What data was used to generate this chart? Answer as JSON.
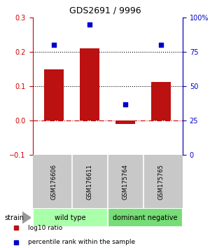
{
  "title": "GDS2691 / 9996",
  "samples": [
    "GSM176606",
    "GSM176611",
    "GSM175764",
    "GSM175765"
  ],
  "log10_ratio": [
    0.148,
    0.21,
    -0.01,
    0.112
  ],
  "percentile_rank": [
    80.0,
    95.0,
    37.0,
    80.0
  ],
  "bar_color": "#bb1111",
  "dot_color": "#0000cc",
  "left_ylim": [
    -0.1,
    0.3
  ],
  "right_ylim": [
    0,
    100
  ],
  "left_yticks": [
    -0.1,
    0.0,
    0.1,
    0.2,
    0.3
  ],
  "right_yticks": [
    0,
    25,
    50,
    75,
    100
  ],
  "right_yticklabels": [
    "0",
    "25",
    "50",
    "75",
    "100%"
  ],
  "dotted_lines": [
    0.1,
    0.2
  ],
  "zero_line": 0.0,
  "groups": [
    {
      "label": "wild type",
      "start": 0,
      "end": 2,
      "color": "#aaffaa"
    },
    {
      "label": "dominant negative",
      "start": 2,
      "end": 4,
      "color": "#77dd77"
    }
  ],
  "strain_label": "strain",
  "legend": [
    {
      "color": "#bb1111",
      "marker": "s",
      "label": "log10 ratio"
    },
    {
      "color": "#0000cc",
      "marker": "s",
      "label": "percentile rank within the sample"
    }
  ],
  "bar_width": 0.55,
  "background_color": "#ffffff",
  "left_axis_color": "#cc0000",
  "right_axis_color": "#0000cc",
  "sample_bg_color": "#c8c8c8",
  "title_fontsize": 9,
  "tick_fontsize": 7,
  "sample_fontsize": 6,
  "group_fontsize": 7,
  "legend_fontsize": 6.5
}
